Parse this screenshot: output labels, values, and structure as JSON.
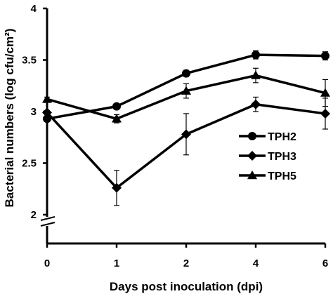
{
  "chart_data": {
    "type": "line",
    "title": "",
    "xlabel": "Days post inoculation (dpi)",
    "ylabel": "Bacterial numbers (log cfu/cm²)",
    "x": [
      0,
      1,
      2,
      4,
      6
    ],
    "x_tick_labels": [
      "0",
      "1",
      "2",
      "4",
      "6"
    ],
    "x_scale": "categorical",
    "ylim": [
      2,
      4
    ],
    "y_ticks": [
      2,
      2.5,
      3,
      3.5,
      4
    ],
    "y_tick_labels": [
      "2",
      "2.5",
      "3",
      "3.5",
      "4"
    ],
    "y_axis_break": true,
    "grid": false,
    "legend_position": "right",
    "series": [
      {
        "name": "TPH2",
        "marker": "circle",
        "values": [
          2.93,
          3.05,
          3.37,
          3.55,
          3.54
        ],
        "errors": [
          0.02,
          0.02,
          0.03,
          0.04,
          0.04
        ]
      },
      {
        "name": "TPH3",
        "marker": "diamond",
        "values": [
          2.99,
          2.26,
          2.78,
          3.07,
          2.98
        ],
        "errors": [
          0.02,
          0.17,
          0.2,
          0.07,
          0.15
        ]
      },
      {
        "name": "TPH5",
        "marker": "triangle",
        "values": [
          3.12,
          2.93,
          3.2,
          3.35,
          3.18
        ],
        "errors": [
          0.02,
          0.04,
          0.07,
          0.07,
          0.13
        ]
      }
    ],
    "colors": {
      "line": "#000000",
      "background": "#ffffff"
    }
  }
}
